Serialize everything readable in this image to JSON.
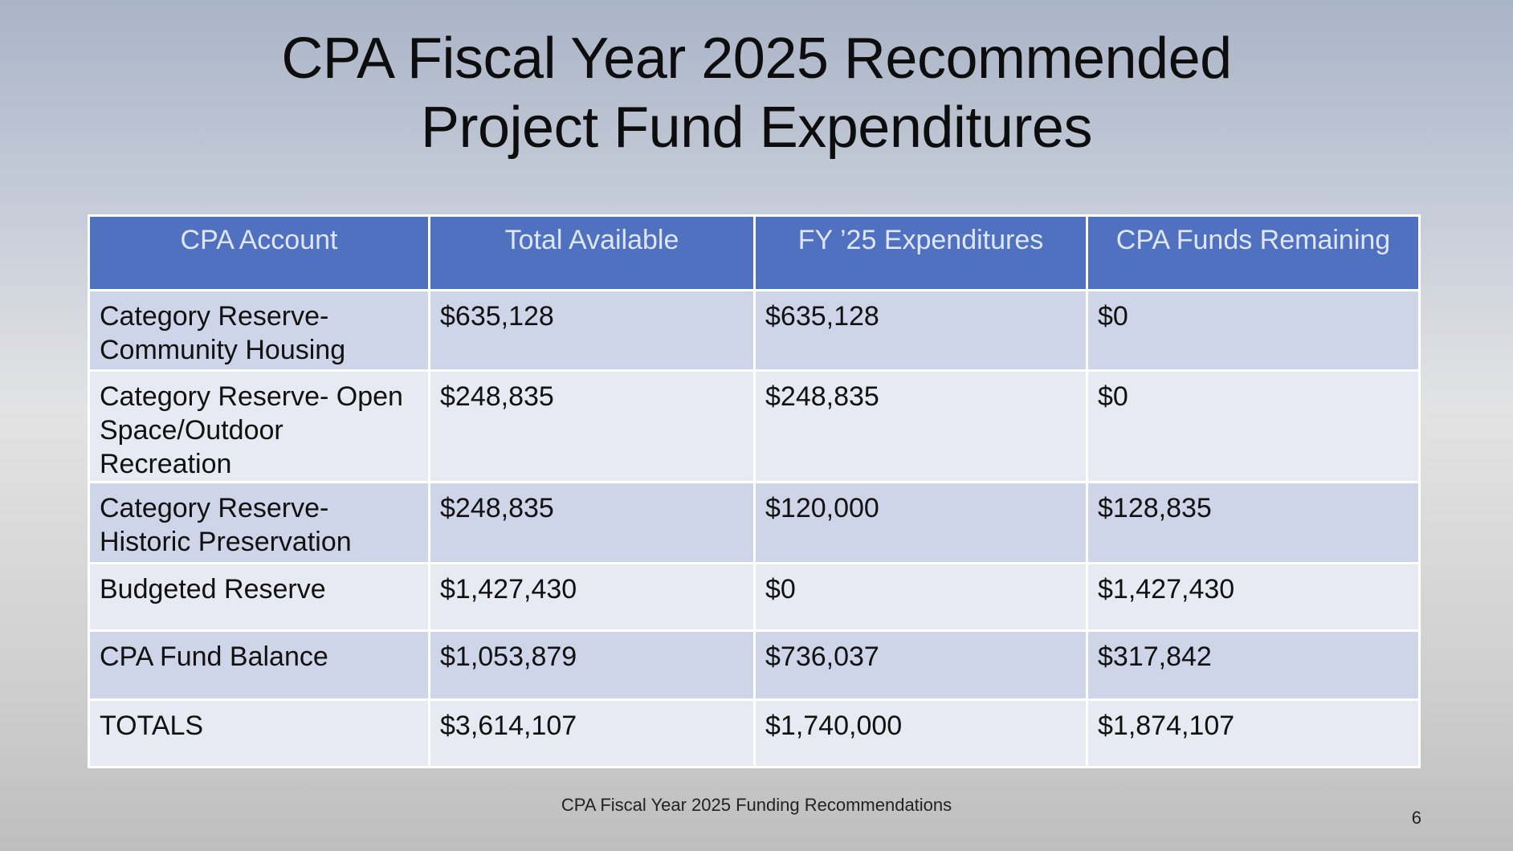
{
  "slide": {
    "title_line1": "CPA Fiscal Year 2025 Recommended",
    "title_line2": "Project Fund Expenditures",
    "footer": "CPA Fiscal Year 2025 Funding Recommendations",
    "page_number": "6"
  },
  "table": {
    "headers": [
      "CPA Account",
      "Total Available",
      "FY ’25 Expenditures",
      "CPA Funds Remaining"
    ],
    "rows": [
      {
        "account_line1": "Category Reserve-",
        "account_line2": "Community Housing",
        "total": "$635,128",
        "expenditures": "$635,128",
        "remaining": "$0"
      },
      {
        "account_line1": "Category Reserve- Open",
        "account_line2": "Space/Outdoor Recreation",
        "total": "$248,835",
        "expenditures": "$248,835",
        "remaining": "$0"
      },
      {
        "account_line1": "Category Reserve-",
        "account_line2": "Historic Preservation",
        "total": "$248,835",
        "expenditures": "$120,000",
        "remaining": "$128,835"
      },
      {
        "account_line1": "Budgeted Reserve",
        "account_line2": "",
        "total": "$1,427,430",
        "expenditures": "$0",
        "remaining": "$1,427,430"
      },
      {
        "account_line1": "CPA Fund Balance",
        "account_line2": "",
        "total": "$1,053,879",
        "expenditures": "$736,037",
        "remaining": "$317,842"
      },
      {
        "account_line1": "TOTALS",
        "account_line2": "",
        "total": "$3,614,107",
        "expenditures": "$1,740,000",
        "remaining": "$1,874,107"
      }
    ]
  },
  "colors": {
    "header_bg": "#4f71bf",
    "header_text": "#dfe6f5",
    "row_odd": "#cfd5e8",
    "row_even": "#e8eaf3"
  }
}
